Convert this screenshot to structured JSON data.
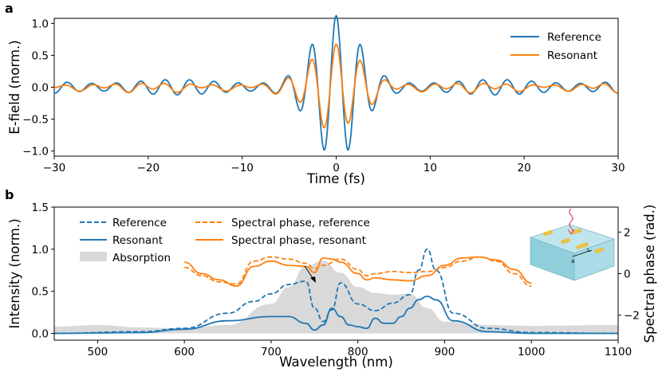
{
  "panel_a": "a",
  "panel_b": "b",
  "colors": {
    "reference": "#1f77b4",
    "resonant": "#ff7f0e",
    "absorption": "#d9d9d9"
  },
  "chart_data": [
    {
      "type": "line",
      "panel": "a",
      "xlabel": "Time (fs)",
      "ylabel": "E-field (norm.)",
      "xlim": [
        -30,
        30
      ],
      "ylim": [
        -1.08,
        1.08
      ],
      "xticks": [
        "−30",
        "−20",
        "−10",
        "0",
        "10",
        "20",
        "30"
      ],
      "xtick_values": [
        -30,
        -20,
        -10,
        0,
        10,
        20,
        30
      ],
      "yticks": [
        "−1.0",
        "−0.5",
        "0.0",
        "0.5",
        "1.0"
      ],
      "ytick_values": [
        -1.0,
        -0.5,
        0.0,
        0.5,
        1.0
      ],
      "legend_position": "top-right",
      "series": [
        {
          "name": "Reference",
          "color": "#1f77b4",
          "envelope_base": 0.12,
          "center_peak": 1.0,
          "center_width_fs": 2.4,
          "period_fs": 2.6
        },
        {
          "name": "Resonant",
          "color": "#ff7f0e",
          "envelope_base": 0.06,
          "center_peak": 0.62,
          "center_width_fs": 2.6,
          "period_fs": 2.6
        }
      ]
    },
    {
      "type": "line",
      "panel": "b",
      "xlabel": "Wavelength (nm)",
      "ylabel": "Intensity (norm.)",
      "ylabel_right": "Spectral phase (rad.)",
      "xlim": [
        450,
        1100
      ],
      "ylim": [
        -0.08,
        1.5
      ],
      "ylim_right": [
        -3.2,
        3.2
      ],
      "xticks": [
        "500",
        "600",
        "700",
        "800",
        "900",
        "1000",
        "1100"
      ],
      "xtick_values": [
        500,
        600,
        700,
        800,
        900,
        1000,
        1100
      ],
      "yticks": [
        "0.0",
        "0.5",
        "1.0",
        "1.5"
      ],
      "ytick_values": [
        0.0,
        0.5,
        1.0,
        1.5
      ],
      "yticks_right": [
        "−2",
        "0",
        "2"
      ],
      "ytick_values_right": [
        -2,
        0,
        2
      ],
      "legend_position": "top-left",
      "series": [
        {
          "name": "Reference",
          "style": "dashed",
          "color": "#1f77b4",
          "x": [
            450,
            550,
            600,
            650,
            680,
            700,
            720,
            740,
            750,
            760,
            770,
            780,
            800,
            820,
            840,
            860,
            870,
            880,
            890,
            910,
            950,
            1000,
            1100
          ],
          "y": [
            0,
            0.02,
            0.06,
            0.24,
            0.38,
            0.47,
            0.58,
            0.62,
            0.3,
            0.14,
            0.28,
            0.6,
            0.35,
            0.27,
            0.36,
            0.46,
            0.75,
            1.0,
            0.75,
            0.24,
            0.06,
            0.01,
            0
          ]
        },
        {
          "name": "Resonant",
          "style": "solid",
          "color": "#1f77b4",
          "x": [
            450,
            550,
            600,
            650,
            700,
            720,
            740,
            750,
            760,
            770,
            780,
            790,
            800,
            810,
            820,
            830,
            840,
            850,
            860,
            870,
            880,
            890,
            910,
            950,
            1000,
            1100
          ],
          "y": [
            0,
            0.01,
            0.05,
            0.15,
            0.2,
            0.2,
            0.12,
            0.04,
            0.1,
            0.3,
            0.2,
            0.1,
            0.08,
            0.06,
            0.18,
            0.12,
            0.12,
            0.2,
            0.3,
            0.4,
            0.44,
            0.4,
            0.15,
            0.02,
            0.0,
            0
          ]
        },
        {
          "name": "Absorption",
          "style": "fill",
          "color": "#d9d9d9",
          "x": [
            450,
            500,
            550,
            600,
            650,
            700,
            720,
            740,
            760,
            780,
            800,
            820,
            840,
            860,
            880,
            900,
            950,
            1000,
            1100
          ],
          "y": [
            0.08,
            0.1,
            0.07,
            0.06,
            0.1,
            0.35,
            0.55,
            0.8,
            0.86,
            0.72,
            0.55,
            0.48,
            0.46,
            0.47,
            0.3,
            0.14,
            0.1,
            0.09,
            0.1
          ]
        },
        {
          "name": "Spectral phase, reference",
          "style": "dashed",
          "color": "#ff7f0e",
          "axis": "right",
          "x": [
            600,
            620,
            640,
            660,
            680,
            700,
            720,
            740,
            750,
            760,
            780,
            800,
            810,
            820,
            840,
            860,
            880,
            900,
            920,
            940,
            960,
            980,
            1000
          ],
          "y": [
            0.3,
            -0.1,
            -0.4,
            -0.5,
            0.6,
            0.8,
            0.7,
            0.5,
            0.25,
            0.4,
            0.7,
            0.2,
            -0.1,
            0.0,
            0.1,
            0.05,
            0.1,
            0.3,
            0.6,
            0.8,
            0.6,
            0.0,
            -0.6
          ]
        },
        {
          "name": "Spectral phase, resonant",
          "style": "solid",
          "color": "#ff7f0e",
          "axis": "right",
          "x": [
            600,
            620,
            640,
            660,
            680,
            700,
            720,
            740,
            750,
            760,
            770,
            780,
            800,
            810,
            820,
            840,
            860,
            880,
            900,
            920,
            940,
            960,
            980,
            1000
          ],
          "y": [
            0.55,
            0.0,
            -0.3,
            -0.6,
            0.35,
            0.6,
            0.4,
            0.35,
            0.05,
            0.75,
            0.7,
            0.55,
            0.0,
            -0.3,
            -0.2,
            -0.3,
            -0.35,
            -0.1,
            0.4,
            0.75,
            0.8,
            0.65,
            0.2,
            -0.45
          ]
        }
      ],
      "annotation": "arrow to phase dip near 750 nm"
    }
  ]
}
